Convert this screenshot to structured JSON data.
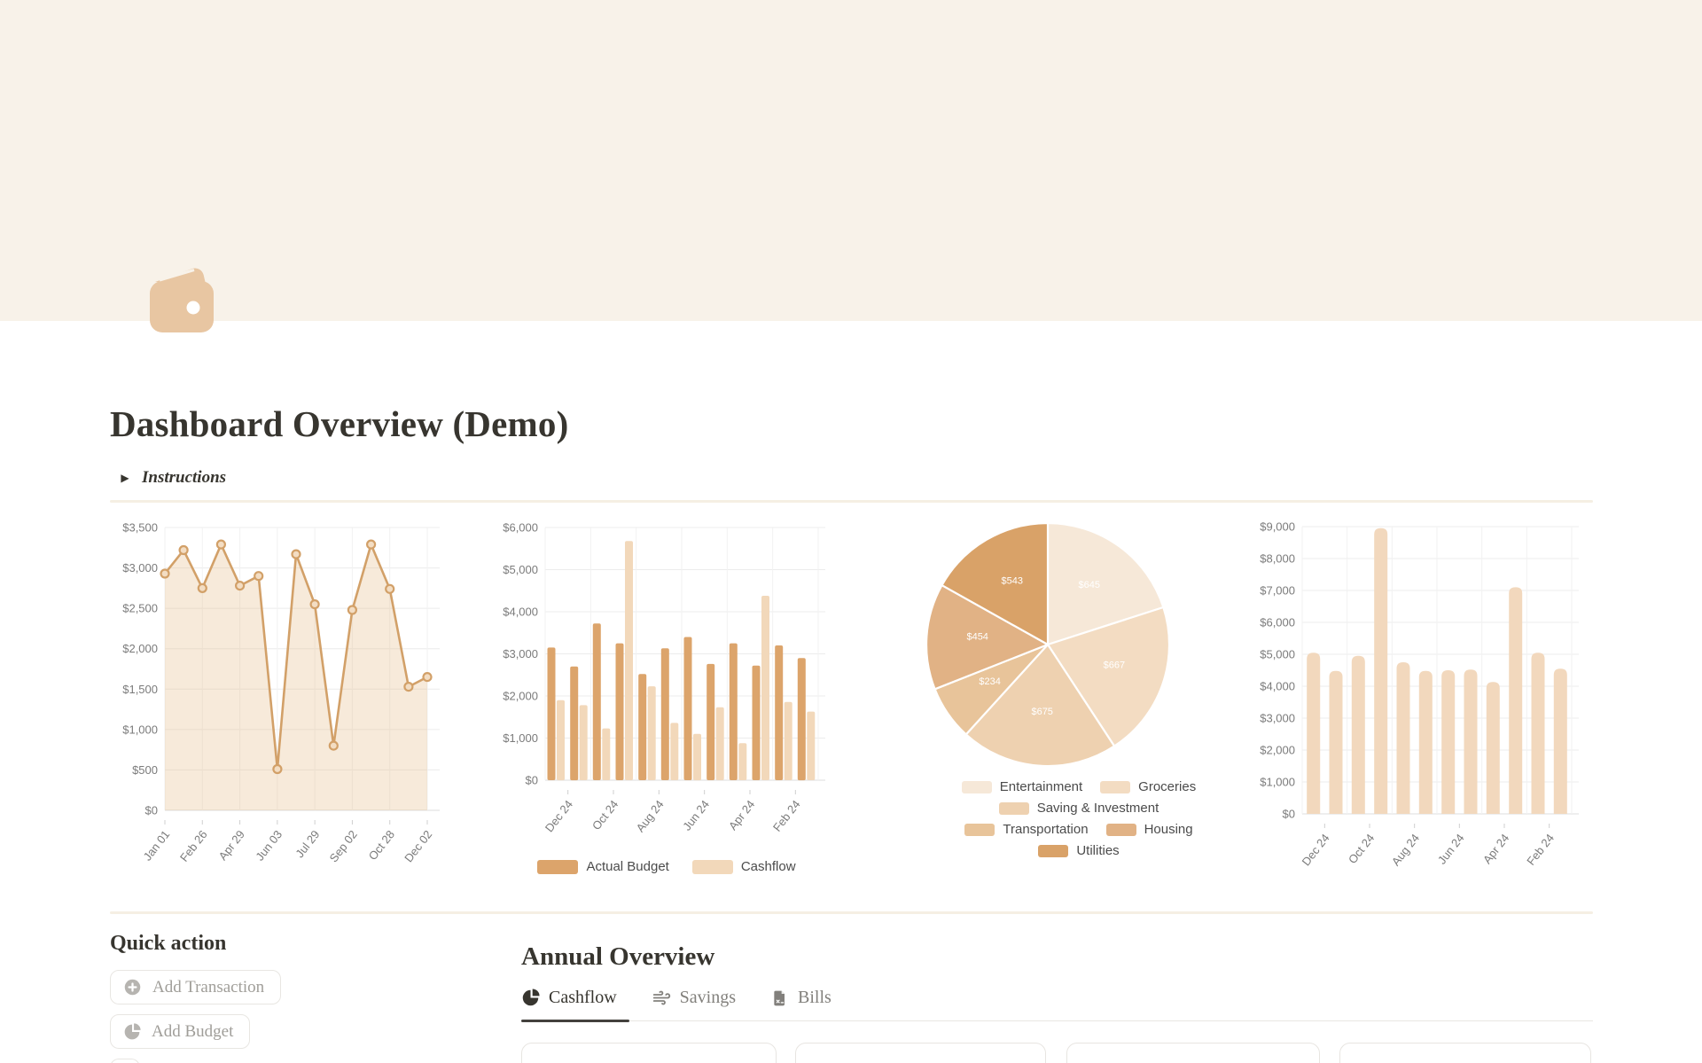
{
  "page": {
    "title": "Dashboard Overview (Demo)",
    "instructions_label": "Instructions"
  },
  "quick_action": {
    "heading": "Quick action",
    "buttons": [
      {
        "label": "Add Transaction",
        "icon": "plus-circle-icon"
      },
      {
        "label": "Add Budget",
        "icon": "pie-chart-icon"
      }
    ]
  },
  "annual_overview": {
    "heading": "Annual Overview",
    "tabs": [
      {
        "label": "Cashflow",
        "icon": "pie-chart-icon",
        "active": true
      },
      {
        "label": "Savings",
        "icon": "wind-icon",
        "active": false
      },
      {
        "label": "Bills",
        "icon": "file-icon",
        "active": false
      }
    ]
  },
  "chart_data": [
    {
      "type": "line",
      "name": "cashflow-trend-area-chart",
      "x_labels": [
        "Jan 01",
        "Feb 26",
        "Apr 29",
        "Jun 03",
        "Jul 29",
        "Sep 02",
        "Oct 28",
        "Dec 02"
      ],
      "values": [
        2930,
        3220,
        2750,
        3290,
        2780,
        2900,
        510,
        3170,
        2550,
        800,
        2480,
        3290,
        2740,
        1530,
        1650
      ],
      "ylim": [
        0,
        3500
      ],
      "ytick_step": 500,
      "ytick_labels": [
        "$0",
        "$500",
        "$1,000",
        "$1,500",
        "$2,000",
        "$2,500",
        "$3,000",
        "$3,500"
      ],
      "grid": true,
      "line_color": "#d2a068",
      "fill_color": "rgba(226,178,122,0.28)",
      "marker_fill": "#f3ddc3"
    },
    {
      "type": "bar",
      "name": "budget-vs-cashflow-grouped-bar-chart",
      "x_labels": [
        "Dec 24",
        "Oct 24",
        "Aug 24",
        "Jun 24",
        "Apr 24",
        "Feb 24"
      ],
      "series": [
        {
          "name": "Actual Budget",
          "color": "#dca46b",
          "values": [
            3150,
            2700,
            3720,
            3250,
            2520,
            3130,
            3400,
            2760,
            3250,
            2720,
            3200,
            2900
          ]
        },
        {
          "name": "Cashflow",
          "color": "#f2d8ba",
          "values": [
            1900,
            1780,
            1230,
            5680,
            2230,
            1360,
            1100,
            1730,
            880,
            4380,
            1860,
            1630
          ]
        }
      ],
      "ylim": [
        0,
        6000
      ],
      "ytick_step": 1000,
      "ytick_labels": [
        "$0",
        "$1,000",
        "$2,000",
        "$3,000",
        "$4,000",
        "$5,000",
        "$6,000"
      ],
      "grid": true,
      "legend_position": "bottom"
    },
    {
      "type": "pie",
      "name": "spending-by-category-pie-chart",
      "slices": [
        {
          "label": "Entertainment",
          "value": 645,
          "display": "$645",
          "color": "#f6e8d8"
        },
        {
          "label": "Groceries",
          "value": 667,
          "display": "$667",
          "color": "#f3dcc2"
        },
        {
          "label": "Saving & Investment",
          "value": 675,
          "display": "$675",
          "color": "#eed1b0"
        },
        {
          "label": "Transportation",
          "value": 234,
          "display": "$234",
          "color": "#e8c49a"
        },
        {
          "label": "Housing",
          "value": 454,
          "display": "$454",
          "color": "#e1b285"
        },
        {
          "label": "Utilities",
          "value": 543,
          "display": "$543",
          "color": "#d9a268"
        }
      ],
      "legend_rows": [
        [
          0,
          1
        ],
        [
          2
        ],
        [
          3,
          4
        ],
        [
          5
        ]
      ],
      "legend_position": "bottom"
    },
    {
      "type": "bar",
      "name": "annual-totals-bar-chart",
      "x_labels": [
        "Dec 24",
        "Oct 24",
        "Aug 24",
        "Jun 24",
        "Apr 24",
        "Feb 24"
      ],
      "values": [
        5050,
        4480,
        4950,
        8950,
        4750,
        4480,
        4500,
        4520,
        4130,
        7100,
        5050,
        4550
      ],
      "color": "#f2d8bd",
      "ylim": [
        0,
        9000
      ],
      "ytick_step": 1000,
      "ytick_labels": [
        "$0",
        "$1,000",
        "$2,000",
        "$3,000",
        "$4,000",
        "$5,000",
        "$6,000",
        "$7,000",
        "$8,000",
        "$9,000"
      ],
      "grid": true
    }
  ]
}
